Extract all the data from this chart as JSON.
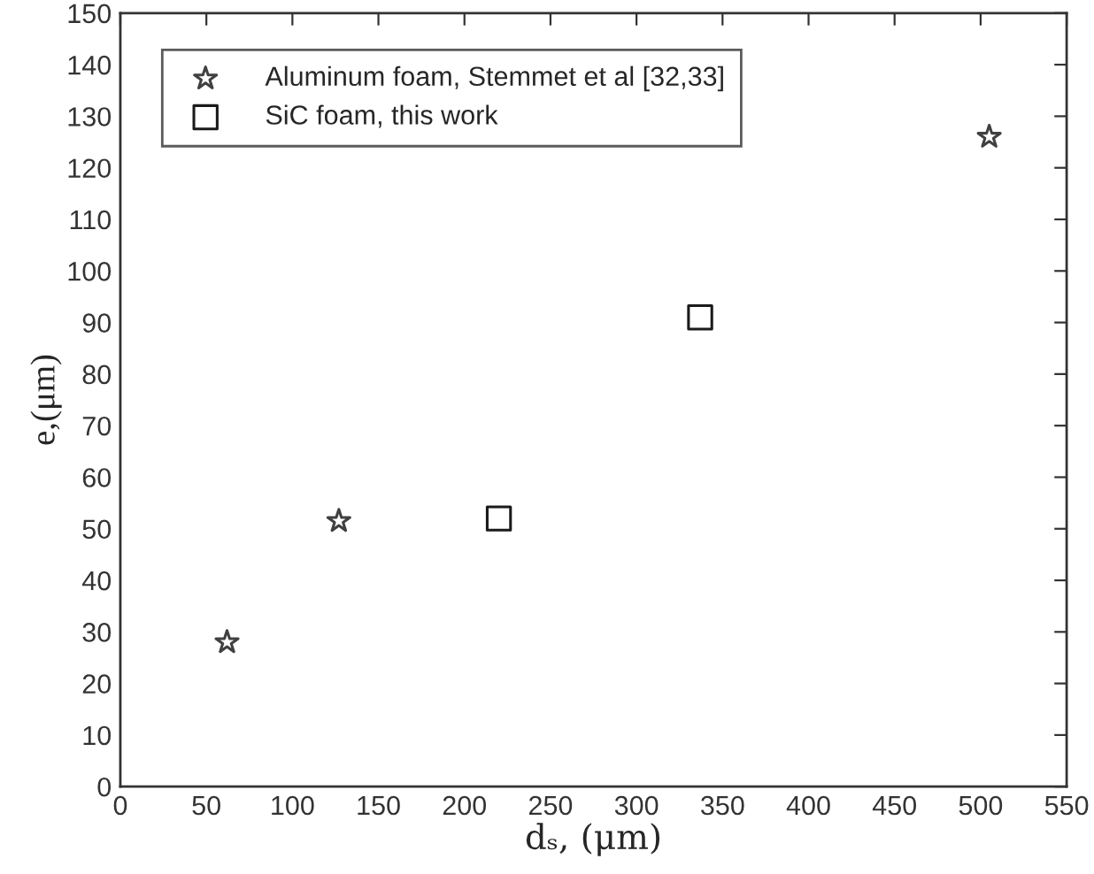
{
  "chart_data": {
    "type": "scatter",
    "xlabel": "dₛ, (μm)",
    "ylabel": "e,(μm)",
    "xlim": [
      0,
      550
    ],
    "xticks": [
      0,
      50,
      100,
      150,
      200,
      250,
      300,
      350,
      400,
      450,
      500,
      550
    ],
    "ylim": [
      0,
      150
    ],
    "yticks": [
      0,
      10,
      20,
      30,
      40,
      50,
      60,
      70,
      80,
      90,
      100,
      110,
      120,
      130,
      140,
      150
    ],
    "grid": false,
    "legend": "top left",
    "series": [
      {
        "name": "Aluminum foam, Stemmet et al [32,33]",
        "color": "#404040",
        "marker": "star",
        "x": [
          62,
          127,
          505
        ],
        "values": [
          28,
          51.5,
          126
        ]
      },
      {
        "name": "SiC foam, this work",
        "color": "#1a1a1a",
        "marker": "square",
        "x": [
          220,
          337
        ],
        "values": [
          52,
          91
        ]
      }
    ]
  }
}
